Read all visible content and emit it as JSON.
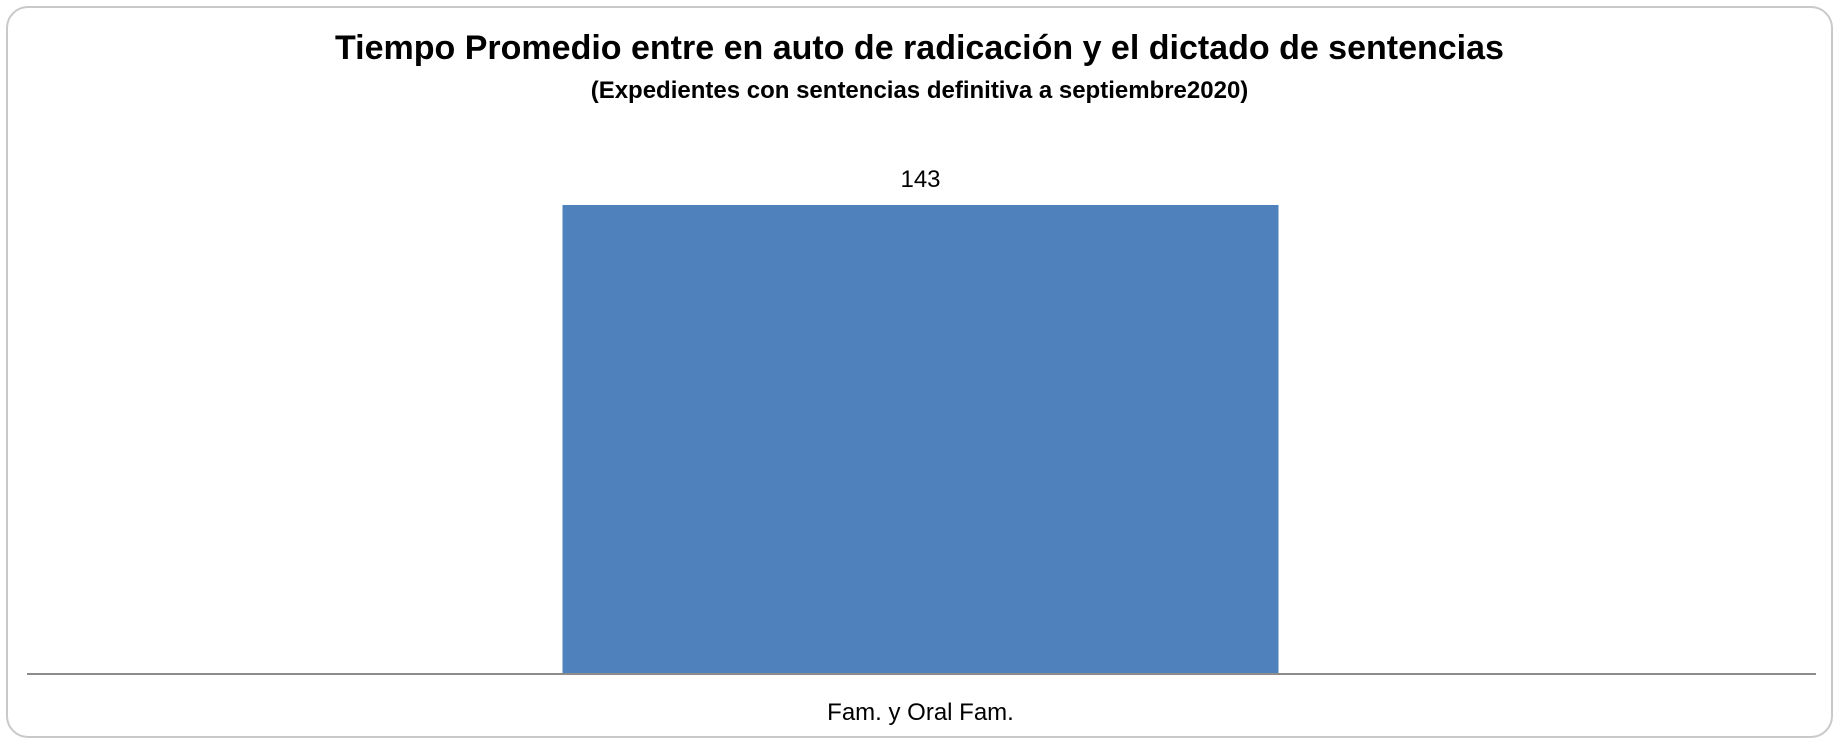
{
  "chart_data": {
    "type": "bar",
    "title": "Tiempo Promedio entre en auto de radicación y el dictado de sentencias",
    "subtitle": "(Expedientes con sentencias definitiva a septiembre2020)",
    "categories": [
      "Fam. y Oral Fam."
    ],
    "series": [
      {
        "values": [
          143
        ],
        "color": "#4f81bd"
      }
    ],
    "data_labels": [
      "143"
    ],
    "xlabel": "",
    "ylabel": "",
    "ylim": [
      0,
      143
    ],
    "grid": false,
    "legend": "none"
  }
}
